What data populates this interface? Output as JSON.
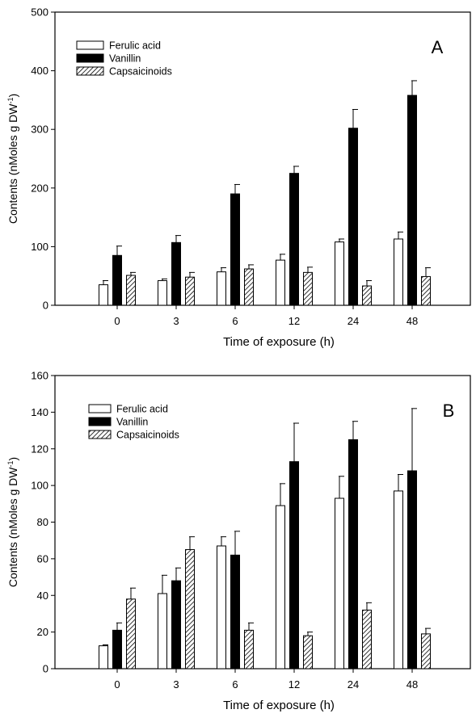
{
  "chart_data": [
    {
      "type": "bar",
      "panel_label": "A",
      "xlabel": "Time of exposure (h)",
      "ylabel": "Contents (nMoles g DW",
      "ylabel_sup": "-1",
      "ylabel_close": ")",
      "categories": [
        "0",
        "3",
        "6",
        "12",
        "24",
        "48"
      ],
      "ylim": [
        0,
        500
      ],
      "yticks": [
        0,
        100,
        200,
        300,
        400,
        500
      ],
      "legend_position": "top-left",
      "grid": false,
      "series": [
        {
          "name": "Ferulic acid",
          "fill": "white",
          "values": [
            35,
            42,
            57,
            77,
            108,
            113
          ],
          "errors": [
            7,
            3,
            7,
            10,
            5,
            12
          ]
        },
        {
          "name": "Vanillin",
          "fill": "black",
          "values": [
            85,
            107,
            190,
            225,
            302,
            358
          ],
          "errors": [
            16,
            12,
            16,
            12,
            32,
            25
          ]
        },
        {
          "name": "Capsaicinoids",
          "fill": "hatch",
          "values": [
            51,
            48,
            62,
            56,
            33,
            49
          ],
          "errors": [
            5,
            8,
            7,
            9,
            9,
            15
          ]
        }
      ]
    },
    {
      "type": "bar",
      "panel_label": "B",
      "xlabel": "Time of exposure (h)",
      "ylabel": "Contents (nMoles g DW",
      "ylabel_sup": "-1",
      "ylabel_close": ")",
      "categories": [
        "0",
        "3",
        "6",
        "12",
        "24",
        "48"
      ],
      "ylim": [
        0,
        160
      ],
      "yticks": [
        0,
        20,
        40,
        60,
        80,
        100,
        120,
        140,
        160
      ],
      "legend_position": "top-left",
      "grid": false,
      "series": [
        {
          "name": "Ferulic acid",
          "fill": "white",
          "values": [
            12.5,
            41,
            67,
            89,
            93,
            97
          ],
          "errors": [
            0.5,
            10,
            5,
            12,
            12,
            9
          ]
        },
        {
          "name": "Vanillin",
          "fill": "black",
          "values": [
            21,
            48,
            62,
            113,
            125,
            108
          ],
          "errors": [
            4,
            7,
            13,
            21,
            10,
            34
          ]
        },
        {
          "name": "Capsaicinoids",
          "fill": "hatch",
          "values": [
            38,
            65,
            21,
            18,
            32,
            19
          ],
          "errors": [
            6,
            7,
            4,
            2,
            4,
            3
          ]
        }
      ]
    }
  ]
}
